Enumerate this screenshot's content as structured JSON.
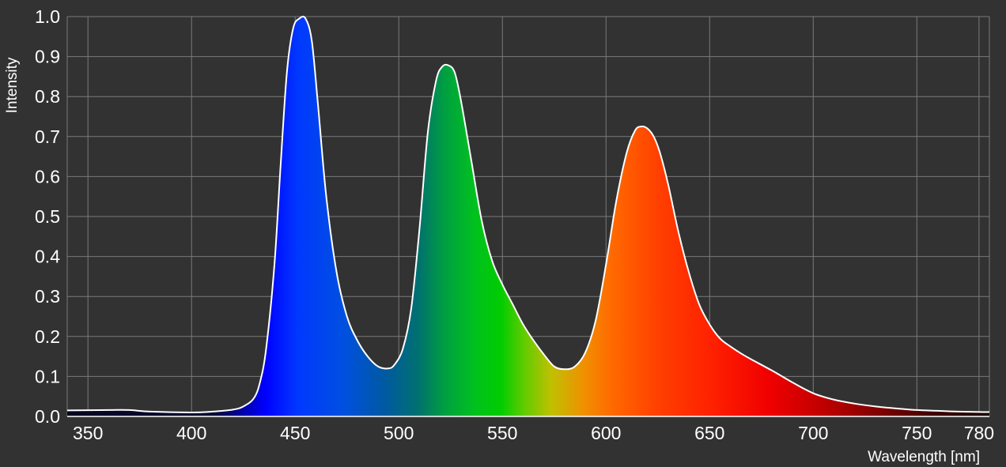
{
  "chart_data": {
    "type": "area",
    "xlabel": "Wavelength [nm]",
    "ylabel": "Intensity",
    "xlim": [
      340,
      785
    ],
    "ylim": [
      0,
      1.0
    ],
    "x_ticks": [
      350,
      400,
      450,
      500,
      550,
      600,
      650,
      700,
      750,
      780
    ],
    "x_tick_labels": [
      "350",
      "400",
      "450",
      "500",
      "550",
      "600",
      "650",
      "700",
      "750",
      "780"
    ],
    "y_ticks": [
      0,
      0.1,
      0.2,
      0.3,
      0.4,
      0.5,
      0.6,
      0.7,
      0.8,
      0.9,
      1.0
    ],
    "y_tick_labels": [
      "0.0",
      "0.1",
      "0.2",
      "0.3",
      "0.4",
      "0.5",
      "0.6",
      "0.7",
      "0.8",
      "0.9",
      "1.0"
    ],
    "grid": true,
    "background": "#323232",
    "line_color": "#ffffff",
    "fill": "visible-spectrum gradient",
    "series": [
      {
        "x": [
          340,
          360,
          370,
          380,
          400,
          410,
          420,
          425,
          430,
          433,
          436,
          440,
          443,
          446,
          449,
          452,
          455,
          458,
          461,
          465,
          470,
          475,
          480,
          485,
          490,
          495,
          498,
          502,
          506,
          510,
          514,
          518,
          521,
          524,
          527,
          530,
          535,
          540,
          545,
          550,
          555,
          560,
          565,
          570,
          575,
          580,
          585,
          590,
          595,
          600,
          605,
          610,
          614,
          617,
          620,
          623,
          626,
          630,
          635,
          640,
          645,
          650,
          655,
          660,
          665,
          670,
          680,
          690,
          700,
          710,
          720,
          730,
          740,
          750,
          760,
          770,
          780,
          785
        ],
        "y": [
          0.015,
          0.016,
          0.016,
          0.012,
          0.01,
          0.012,
          0.017,
          0.025,
          0.045,
          0.085,
          0.17,
          0.38,
          0.63,
          0.86,
          0.97,
          0.995,
          0.995,
          0.94,
          0.78,
          0.55,
          0.36,
          0.25,
          0.19,
          0.15,
          0.125,
          0.12,
          0.13,
          0.17,
          0.27,
          0.47,
          0.71,
          0.84,
          0.875,
          0.878,
          0.86,
          0.79,
          0.64,
          0.49,
          0.39,
          0.33,
          0.28,
          0.23,
          0.19,
          0.155,
          0.125,
          0.118,
          0.125,
          0.16,
          0.24,
          0.38,
          0.54,
          0.66,
          0.715,
          0.725,
          0.72,
          0.7,
          0.66,
          0.58,
          0.46,
          0.36,
          0.28,
          0.23,
          0.195,
          0.175,
          0.158,
          0.143,
          0.115,
          0.085,
          0.058,
          0.042,
          0.032,
          0.025,
          0.02,
          0.016,
          0.014,
          0.012,
          0.011,
          0.011
        ]
      }
    ]
  }
}
